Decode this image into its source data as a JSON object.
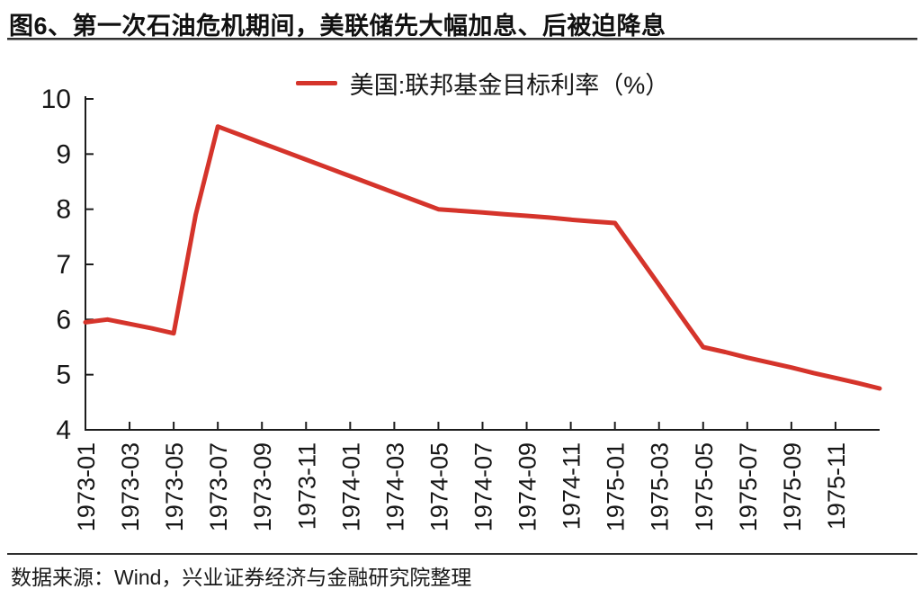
{
  "figure": {
    "title": "图6、第一次石油危机期间，美联储先大幅加息、后被迫降息"
  },
  "footer": {
    "source": "数据来源：Wind，兴业证券经济与金融研究院整理"
  },
  "colors": {
    "line": "#d5342b",
    "axis": "#1c1c1c",
    "text": "#161616"
  },
  "chart_data": {
    "type": "line",
    "title": "图6、第一次石油危机期间，美联储先大幅加息、后被迫降息",
    "legend": [
      "美国:联邦基金目标利率（%）"
    ],
    "legend_position": "top-center",
    "grid": false,
    "xlabel": "",
    "ylabel": "",
    "ylim": [
      4,
      10
    ],
    "yticks": [
      4,
      5,
      6,
      7,
      8,
      9,
      10
    ],
    "x": [
      "1973-01",
      "1973-02",
      "1973-03",
      "1973-04",
      "1973-05",
      "1973-06",
      "1973-07",
      "1973-08",
      "1973-09",
      "1973-10",
      "1973-11",
      "1973-12",
      "1974-01",
      "1974-02",
      "1974-03",
      "1974-04",
      "1974-05",
      "1974-06",
      "1974-07",
      "1974-08",
      "1974-09",
      "1974-10",
      "1974-11",
      "1974-12",
      "1975-01",
      "1975-02",
      "1975-03",
      "1975-04",
      "1975-05",
      "1975-06",
      "1975-07",
      "1975-08",
      "1975-09",
      "1975-10",
      "1975-11",
      "1975-12",
      "1976-01"
    ],
    "xtick_labels": [
      "1973-01",
      "1973-03",
      "1973-05",
      "1973-07",
      "1973-09",
      "1973-11",
      "1974-01",
      "1974-03",
      "1974-05",
      "1974-07",
      "1974-09",
      "1974-11",
      "1975-01",
      "1975-03",
      "1975-05",
      "1975-07",
      "1975-09",
      "1975-11"
    ],
    "series": [
      {
        "name": "美国:联邦基金目标利率（%）",
        "values": [
          5.95,
          6.0,
          5.92,
          5.84,
          5.75,
          7.9,
          9.5,
          9.35,
          9.2,
          9.05,
          8.9,
          8.75,
          8.6,
          8.45,
          8.3,
          8.15,
          8.0,
          7.97,
          7.94,
          7.91,
          7.88,
          7.85,
          7.81,
          7.78,
          7.75,
          7.19,
          6.63,
          6.06,
          5.5,
          5.41,
          5.31,
          5.22,
          5.13,
          5.03,
          4.94,
          4.85,
          4.75
        ]
      }
    ]
  }
}
